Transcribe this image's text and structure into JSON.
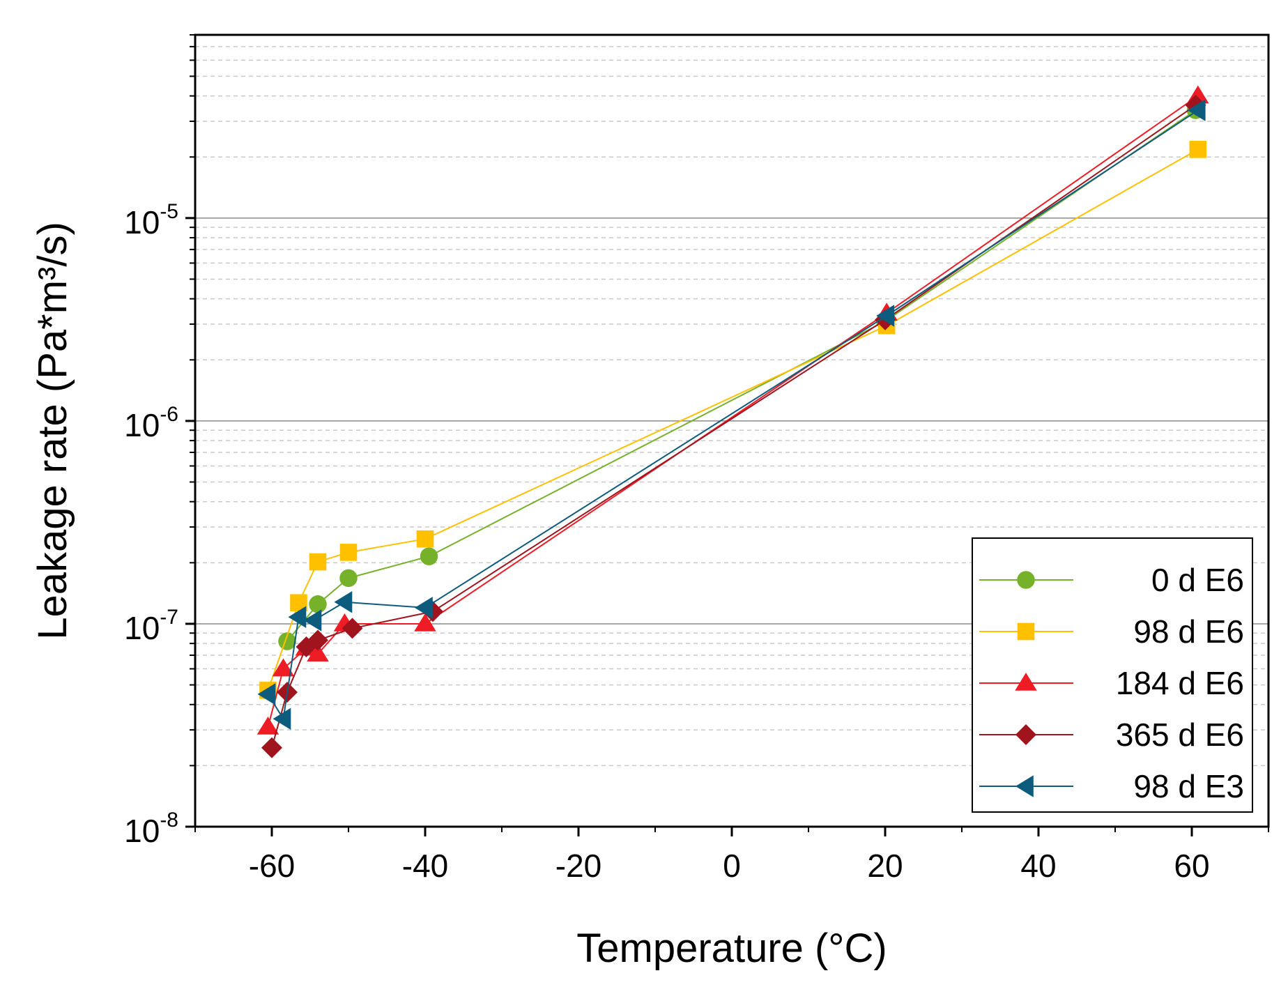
{
  "chart_data": {
    "type": "line",
    "xlabel": "Temperature (°C)",
    "ylabel": "Leakage rate (Pa*m³/s)",
    "xlim": [
      -70,
      70
    ],
    "ylim": [
      1e-08,
      8e-05
    ],
    "yscale": "log",
    "x_ticks": [
      -60,
      -40,
      -20,
      0,
      20,
      40,
      60
    ],
    "x_tick_labels": [
      "-60",
      "-40",
      "-20",
      "0",
      "20",
      "40",
      "60"
    ],
    "y_ticks": [
      1e-08,
      1e-07,
      1e-06,
      1e-05
    ],
    "y_tick_labels": [
      {
        "base": "10",
        "exp": "-8"
      },
      {
        "base": "10",
        "exp": "-7"
      },
      {
        "base": "10",
        "exp": "-6"
      },
      {
        "base": "10",
        "exp": "-5"
      }
    ],
    "grid": {
      "major": true,
      "minor": true
    },
    "legend_position": "bottom-right",
    "series": [
      {
        "name": "0 d E6",
        "color": "#76b12a",
        "marker": "circle",
        "x": [
          -58,
          -54,
          -50,
          -39.5,
          20,
          60.5
        ],
        "y": [
          8.2e-08,
          1.25e-07,
          1.68e-07,
          2.15e-07,
          3.1e-06,
          3.4e-05
        ]
      },
      {
        "name": "98 d E6",
        "color": "#ffc000",
        "marker": "square",
        "x": [
          -60.5,
          -56.5,
          -54,
          -50,
          -40,
          20.2,
          60.8
        ],
        "y": [
          4.7e-08,
          1.27e-07,
          2.02e-07,
          2.25e-07,
          2.62e-07,
          2.95e-06,
          2.18e-05
        ]
      },
      {
        "name": "184 d E6",
        "color": "#ee1c25",
        "marker": "triangle",
        "x": [
          -60.5,
          -58.5,
          -55.5,
          -54,
          -50.5,
          -40,
          20.2,
          60.8
        ],
        "y": [
          3.1e-08,
          6e-08,
          7.6e-08,
          7.1e-08,
          1e-07,
          1e-07,
          3.4e-06,
          4e-05
        ]
      },
      {
        "name": "365 d E6",
        "color": "#a0141e",
        "marker": "diamond",
        "x": [
          -60,
          -58,
          -55.5,
          -54,
          -49.5,
          -39,
          20,
          60.5
        ],
        "y": [
          2.45e-08,
          4.6e-08,
          7.7e-08,
          8.3e-08,
          9.5e-08,
          1.15e-07,
          3.15e-06,
          3.6e-05
        ]
      },
      {
        "name": "98 d E3",
        "color": "#0e5c7d",
        "marker": "left-triangle",
        "x": [
          -60.5,
          -58.5,
          -56.5,
          -54.5,
          -50.5,
          -40,
          20.2,
          60.8
        ],
        "y": [
          4.5e-08,
          3.4e-08,
          1.08e-07,
          1.04e-07,
          1.28e-07,
          1.2e-07,
          3.3e-06,
          3.4e-05
        ]
      }
    ]
  }
}
